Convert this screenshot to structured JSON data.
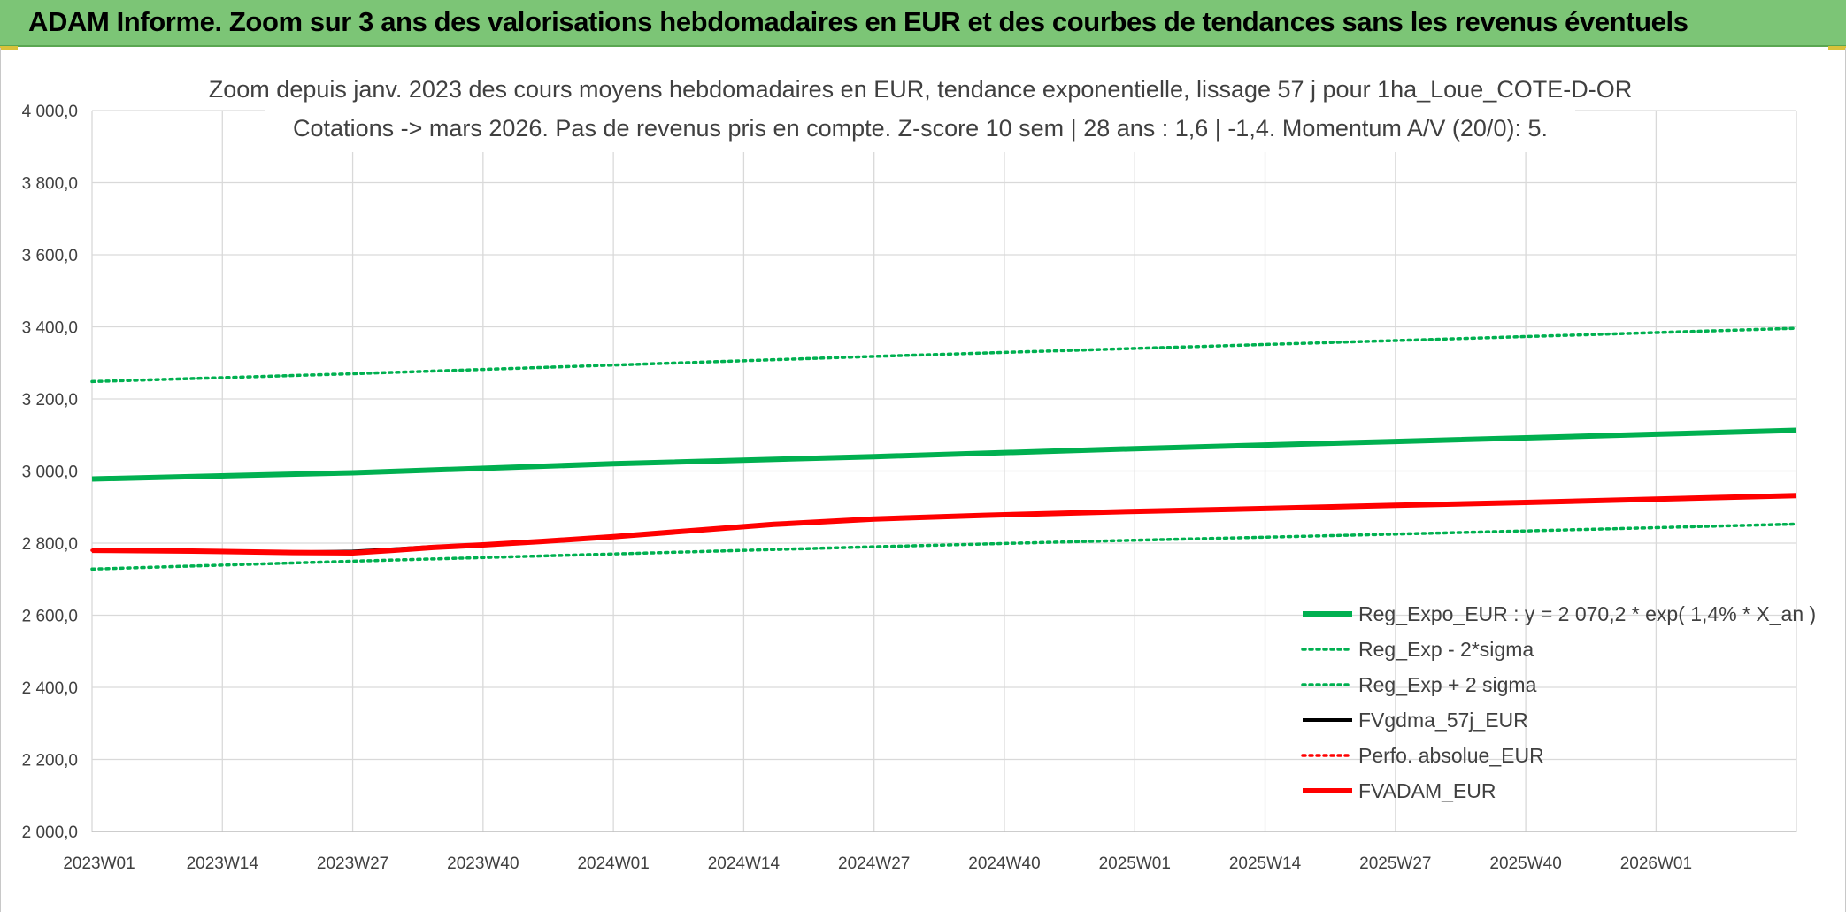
{
  "banner": {
    "title": "ADAM Informe. Zoom sur 3 ans des valorisations hebdomadaires en EUR et des courbes de tendances sans les revenus éventuels",
    "background": "#7cc576"
  },
  "chart_data": {
    "type": "line",
    "title": [
      "Zoom depuis janv. 2023 des cours moyens hebdomadaires en EUR, tendance exponentielle, lissage 57 j pour 1ha_Loue_COTE-D-OR",
      "Cotations -> mars 2026. Pas de revenus pris en compte. Z-score 10 sem | 28 ans : 1,6 | -1,4. Momentum A/V (20/0): 5."
    ],
    "xlabel": "",
    "ylabel": "",
    "x_ticks": [
      "2023W01",
      "2023W14",
      "2023W27",
      "2023W40",
      "2024W01",
      "2024W14",
      "2024W27",
      "2024W40",
      "2025W01",
      "2025W14",
      "2025W27",
      "2025W40",
      "2026W01"
    ],
    "x_range_weeks": [
      0,
      170
    ],
    "y_ticks": [
      "2 000,0",
      "2 200,0",
      "2 400,0",
      "2 600,0",
      "2 800,0",
      "3 000,0",
      "3 200,0",
      "3 400,0",
      "3 600,0",
      "3 800,0",
      "4 000,0"
    ],
    "ylim": [
      2000,
      4000
    ],
    "grid": true,
    "legend_position": "bottom-right",
    "series": [
      {
        "name": "Reg_Expo_EUR : y = 2 070,2 * exp( 1,4% *  X_an )",
        "color": "#00b050",
        "style": "solid-thick",
        "points": [
          [
            0,
            2978
          ],
          [
            26,
            2995
          ],
          [
            52,
            3020
          ],
          [
            78,
            3040
          ],
          [
            104,
            3062
          ],
          [
            130,
            3082
          ],
          [
            156,
            3102
          ],
          [
            170,
            3113
          ]
        ]
      },
      {
        "name": "Reg_Exp - 2*sigma",
        "color": "#00b050",
        "style": "dotted",
        "points": [
          [
            0,
            2728
          ],
          [
            26,
            2750
          ],
          [
            52,
            2770
          ],
          [
            78,
            2790
          ],
          [
            104,
            2808
          ],
          [
            130,
            2825
          ],
          [
            156,
            2843
          ],
          [
            170,
            2853
          ]
        ]
      },
      {
        "name": "Reg_Exp + 2 sigma",
        "color": "#00b050",
        "style": "dotted",
        "points": [
          [
            0,
            3248
          ],
          [
            26,
            3270
          ],
          [
            52,
            3294
          ],
          [
            78,
            3318
          ],
          [
            104,
            3340
          ],
          [
            130,
            3362
          ],
          [
            156,
            3384
          ],
          [
            170,
            3396
          ]
        ]
      },
      {
        "name": "FVgdma_57j_EUR",
        "color": "#000000",
        "style": "solid",
        "points": [
          [
            0,
            2780
          ],
          [
            10,
            2778
          ],
          [
            20,
            2775
          ],
          [
            26,
            2777
          ],
          [
            30,
            2783
          ],
          [
            34,
            2790
          ],
          [
            39,
            2795
          ],
          [
            45,
            2805
          ],
          [
            52,
            2818
          ],
          [
            60,
            2835
          ],
          [
            68,
            2852
          ],
          [
            78,
            2867
          ],
          [
            89,
            2877
          ],
          [
            104,
            2888
          ],
          [
            117,
            2896
          ],
          [
            130,
            2905
          ],
          [
            143,
            2913
          ],
          [
            156,
            2922
          ],
          [
            170,
            2932
          ]
        ]
      },
      {
        "name": "Perfo. absolue_EUR",
        "color": "#ff0000",
        "style": "dotted",
        "points": [
          [
            0,
            2780
          ],
          [
            10,
            2778
          ],
          [
            20,
            2774
          ],
          [
            26,
            2773
          ],
          [
            30,
            2780
          ],
          [
            34,
            2788
          ],
          [
            39,
            2795
          ],
          [
            45,
            2805
          ],
          [
            52,
            2818
          ],
          [
            60,
            2835
          ],
          [
            68,
            2852
          ],
          [
            78,
            2867
          ],
          [
            89,
            2877
          ],
          [
            104,
            2888
          ],
          [
            117,
            2896
          ],
          [
            130,
            2905
          ],
          [
            143,
            2913
          ],
          [
            156,
            2922
          ],
          [
            170,
            2932
          ]
        ]
      },
      {
        "name": "FVADAM_EUR",
        "color": "#ff0000",
        "style": "solid-thick",
        "points": [
          [
            0,
            2780
          ],
          [
            10,
            2778
          ],
          [
            20,
            2774
          ],
          [
            26,
            2773
          ],
          [
            30,
            2780
          ],
          [
            34,
            2788
          ],
          [
            39,
            2795
          ],
          [
            45,
            2805
          ],
          [
            52,
            2818
          ],
          [
            60,
            2835
          ],
          [
            68,
            2852
          ],
          [
            78,
            2867
          ],
          [
            89,
            2877
          ],
          [
            104,
            2888
          ],
          [
            117,
            2896
          ],
          [
            130,
            2905
          ],
          [
            143,
            2913
          ],
          [
            156,
            2922
          ],
          [
            170,
            2932
          ]
        ]
      }
    ]
  }
}
